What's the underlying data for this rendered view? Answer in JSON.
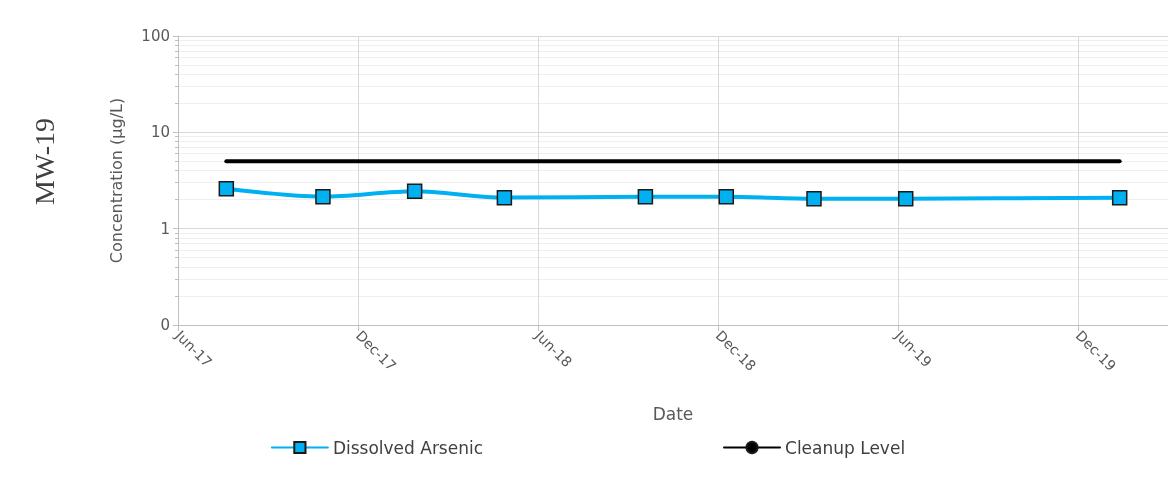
{
  "chart_data": {
    "type": "line",
    "title": "MW-19",
    "xlabel": "Date",
    "ylabel": "Concentration (µg/L)",
    "log": "y",
    "grid": true,
    "legend": "bottom",
    "line_style": "solid",
    "xlim": [
      "2017-06-01",
      "2020-03-01"
    ],
    "xticks": [
      {
        "value": "2017-06-01",
        "label": "Jun-17"
      },
      {
        "value": "2017-12-01",
        "label": "Dec-17"
      },
      {
        "value": "2018-06-01",
        "label": "Jun-18"
      },
      {
        "value": "2018-12-01",
        "label": "Dec-18"
      },
      {
        "value": "2019-06-01",
        "label": "Jun-19"
      },
      {
        "value": "2019-12-01",
        "label": "Dec-19"
      }
    ],
    "ylim": [
      0.1,
      100
    ],
    "yticks": [
      {
        "value": 0.1,
        "label": "0"
      },
      1,
      10,
      100
    ],
    "series": [
      {
        "name": "Dissolved Arsenic",
        "color": "#00b0f0",
        "marker": "square",
        "x": [
          "2017-07-20",
          "2017-10-26",
          "2018-01-27",
          "2018-04-28",
          "2018-09-18",
          "2018-12-09",
          "2019-03-08",
          "2019-06-09",
          "2020-01-12"
        ],
        "values": [
          2.6,
          2.15,
          2.45,
          2.1,
          2.15,
          2.15,
          2.05,
          2.05,
          2.1
        ]
      },
      {
        "name": "Cleanup Level",
        "color": "#000000",
        "marker": "none",
        "x": [
          "2017-07-20",
          "2020-01-12"
        ],
        "values": [
          5,
          5
        ]
      }
    ]
  }
}
